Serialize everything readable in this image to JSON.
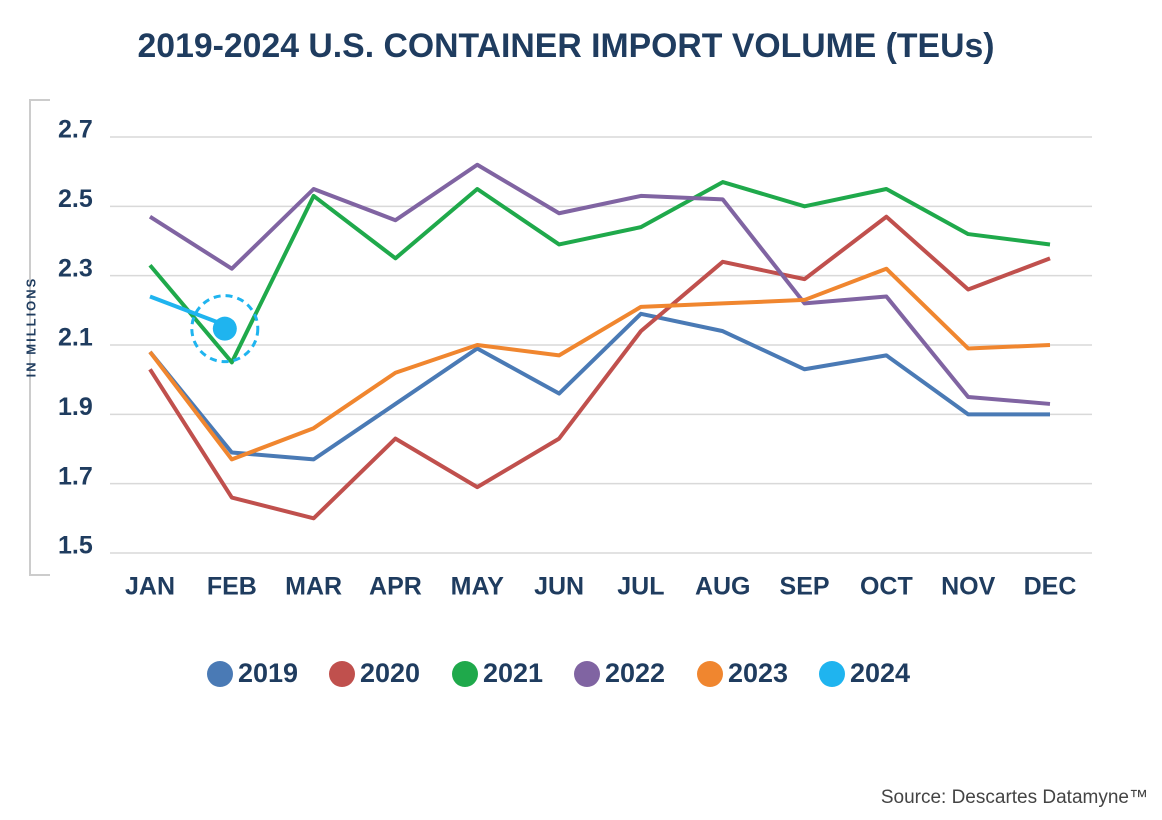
{
  "chart_data": {
    "type": "line",
    "title": "2019-2024 U.S. CONTAINER IMPORT VOLUME (TEUs)",
    "y_label": "IN MILLIONS",
    "source": "Source: Descartes Datamyne™",
    "categories": [
      "JAN",
      "FEB",
      "MAR",
      "APR",
      "MAY",
      "JUN",
      "JUL",
      "AUG",
      "SEP",
      "OCT",
      "NOV",
      "DEC"
    ],
    "ylim": [
      1.5,
      2.7
    ],
    "yticks": [
      1.5,
      1.7,
      1.9,
      2.1,
      2.3,
      2.5,
      2.7
    ],
    "grid": true,
    "legend": "bottom",
    "series": [
      {
        "name": "2019",
        "color": "#4a7ab5",
        "values": [
          2.08,
          1.79,
          1.77,
          1.93,
          2.09,
          1.96,
          2.19,
          2.14,
          2.03,
          2.07,
          1.9,
          1.9
        ]
      },
      {
        "name": "2020",
        "color": "#c0504d",
        "values": [
          2.03,
          1.66,
          1.6,
          1.83,
          1.69,
          1.83,
          2.14,
          2.34,
          2.29,
          2.47,
          2.26,
          2.35
        ]
      },
      {
        "name": "2021",
        "color": "#1fa94b",
        "values": [
          2.33,
          2.05,
          2.53,
          2.35,
          2.55,
          2.39,
          2.44,
          2.57,
          2.5,
          2.55,
          2.42,
          2.39
        ]
      },
      {
        "name": "2022",
        "color": "#8064a2",
        "values": [
          2.47,
          2.32,
          2.55,
          2.46,
          2.62,
          2.48,
          2.53,
          2.52,
          2.22,
          2.24,
          1.95,
          1.93
        ]
      },
      {
        "name": "2023",
        "color": "#f0862f",
        "values": [
          2.08,
          1.77,
          1.86,
          2.02,
          2.1,
          2.07,
          2.21,
          2.22,
          2.23,
          2.32,
          2.09,
          2.1
        ]
      },
      {
        "name": "2024",
        "color": "#1fb4ef",
        "marker": "circle",
        "values": [
          2.24,
          2.15,
          null,
          null,
          null,
          null,
          null,
          null,
          null,
          null,
          null,
          null
        ]
      }
    ]
  }
}
